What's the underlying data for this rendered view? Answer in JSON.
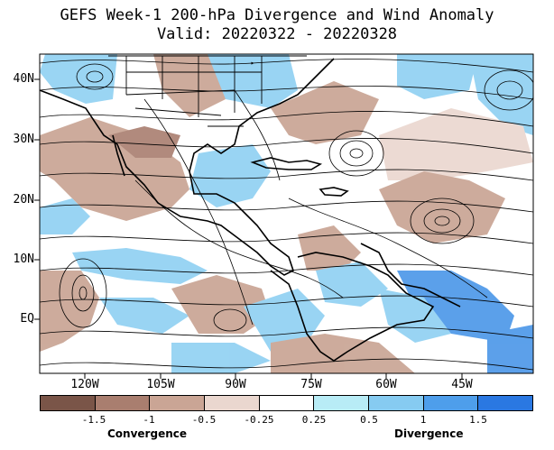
{
  "title": {
    "line1": "GEFS Week-1 200-hPa Divergence and Wind Anomaly",
    "line2": "Valid: 20220322 - 20220328"
  },
  "axes": {
    "lat_labels": [
      "40N",
      "30N",
      "20N",
      "10N",
      "EQ"
    ],
    "lon_labels": [
      "120W",
      "105W",
      "90W",
      "75W",
      "60W",
      "45W"
    ]
  },
  "colorbar": {
    "ticks": [
      "-1.5",
      "-1",
      "-0.5",
      "-0.25",
      "0.25",
      "0.5",
      "1",
      "1.5"
    ],
    "colors": [
      "#7a5548",
      "#a97e6f",
      "#caa595",
      "#ead7cf",
      "#ffffff",
      "#b8ecf6",
      "#86cbf1",
      "#4e9eeb",
      "#2a78e2"
    ],
    "left_label": "Convergence",
    "right_label": "Divergence"
  },
  "map_colors": {
    "land_outline": "#000000",
    "streamline": "#000000",
    "convergence": "#c8a392",
    "divergence": "#8fd0f2",
    "strong_divergence": "#4a96e8"
  }
}
